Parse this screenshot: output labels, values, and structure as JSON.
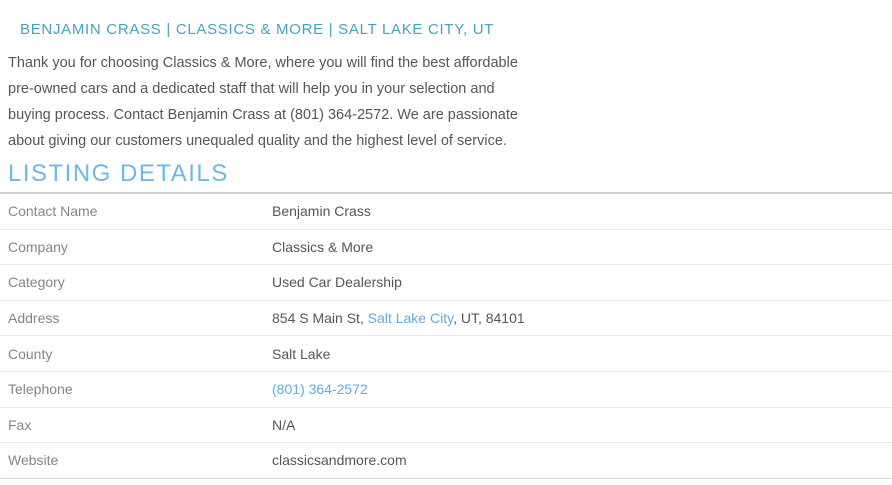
{
  "header": {
    "title": "BENJAMIN CRASS | CLASSICS & MORE | SALT LAKE CITY, UT",
    "description": "Thank you for choosing Classics & More, where you will find the best affordable pre-owned cars and a dedicated staff that will help you in your selection and buying process. Contact Benjamin Crass at (801) 364-2572. We are passionate about giving our customers unequaled quality and the highest level of service."
  },
  "details": {
    "heading": "LISTING DETAILS",
    "rows": {
      "contact_name": {
        "label": "Contact Name",
        "value": "Benjamin Crass"
      },
      "company": {
        "label": "Company",
        "value": "Classics & More"
      },
      "category": {
        "label": "Category",
        "value": "Used Car Dealership"
      },
      "address": {
        "label": "Address",
        "street": "854 S Main St, ",
        "city": "Salt Lake City",
        "rest": ", UT, 84101"
      },
      "county": {
        "label": "County",
        "value": "Salt Lake"
      },
      "telephone": {
        "label": "Telephone",
        "value": "(801) 364-2572"
      },
      "fax": {
        "label": "Fax",
        "value": "N/A"
      },
      "website": {
        "label": "Website",
        "value": "classicsandmore.com"
      }
    }
  },
  "colors": {
    "title_teal": "#47a3bd",
    "heading_blue": "#6cb9e2",
    "link_blue": "#64aadc",
    "label_gray": "#85868a",
    "value_gray": "#55565a",
    "divider_light": "#eaeaec",
    "divider_heading": "#d0d0d2"
  }
}
